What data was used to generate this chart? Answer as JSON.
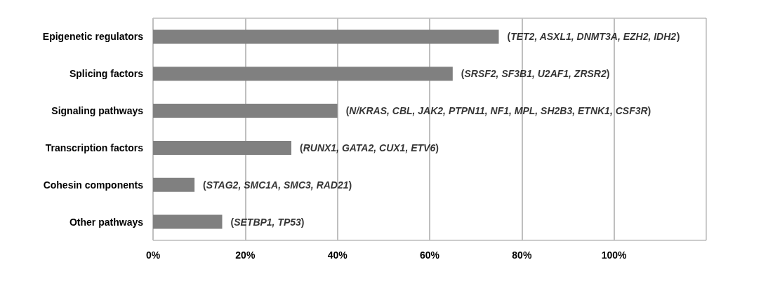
{
  "chart_data": {
    "type": "bar",
    "orientation": "horizontal",
    "categories": [
      "Epigenetic regulators",
      "Splicing factors",
      "Signaling pathways",
      "Transcription factors",
      "Cohesin components",
      "Other pathways"
    ],
    "values": [
      75,
      65,
      40,
      30,
      9,
      15
    ],
    "color": "#808080",
    "xlim": [
      0,
      120
    ],
    "xticks": [
      {
        "value": 0,
        "label": "0%"
      },
      {
        "value": 20,
        "label": "20%"
      },
      {
        "value": 40,
        "label": "40%"
      },
      {
        "value": 60,
        "label": "60%"
      },
      {
        "value": 80,
        "label": "80%"
      },
      {
        "value": 100,
        "label": "100%"
      }
    ],
    "grid": "x",
    "annotations": [
      {
        "text": "(TET2, ASXL1, DNMT3A, EZH2, IDH2)",
        "x": 75,
        "y": "Epigenetic regulators"
      },
      {
        "text": "(SRSF2, SF3B1, U2AF1, ZRSR2)",
        "x": 65,
        "y": "Splicing factors"
      },
      {
        "text": "(N/KRAS, CBL, JAK2, PTPN11, NF1, MPL, SH2B3, ETNK1, CSF3R)",
        "x": 40,
        "y": "Signaling pathways"
      },
      {
        "text": "(RUNX1, GATA2, CUX1, ETV6)",
        "x": 30,
        "y": "Transcription factors"
      },
      {
        "text": "(STAG2, SMC1A, SMC3, RAD21)",
        "x": 9,
        "y": "Cohesin components"
      },
      {
        "text": "(SETBP1, TP53)",
        "x": 15,
        "y": "Other pathways"
      }
    ]
  }
}
